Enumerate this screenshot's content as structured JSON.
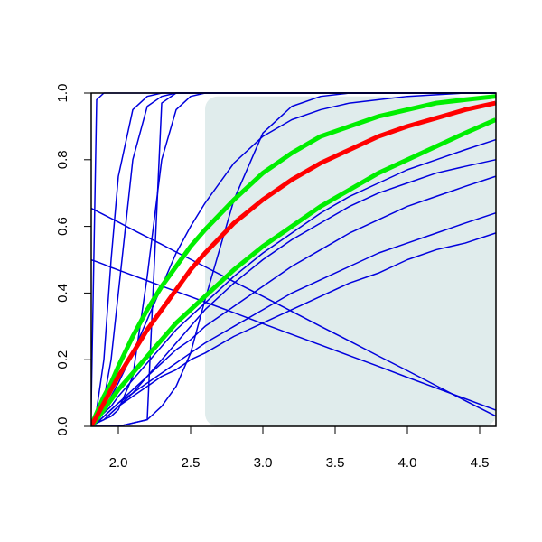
{
  "chart_data": {
    "type": "line",
    "x": [
      1.81,
      1.85,
      1.9,
      1.95,
      2.0,
      2.1,
      2.2,
      2.3,
      2.4,
      2.5,
      2.6,
      2.8,
      3.0,
      3.2,
      3.4,
      3.6,
      3.8,
      4.0,
      4.2,
      4.4,
      4.61
    ],
    "xlim": [
      1.8125,
      4.6125
    ],
    "ylim": [
      0,
      1
    ],
    "xticks": [
      {
        "value": 2,
        "label": "2.0"
      },
      2.5,
      {
        "value": 3,
        "label": "3.0"
      },
      3.5,
      {
        "value": 4,
        "label": "4.0"
      },
      4.5
    ],
    "yticks": [
      {
        "value": 0,
        "label": "0.0"
      },
      0.2,
      0.4,
      0.6,
      0.8,
      {
        "value": 1,
        "label": "1.0"
      }
    ],
    "shaded_region": {
      "x": [
        2.6,
        4.6125
      ],
      "y": [
        0,
        0.99
      ],
      "color": "#e0ecec"
    },
    "series": [
      {
        "color": "#0000dd",
        "width": 1.5,
        "values": [
          0,
          0.98,
          1,
          1,
          1,
          1,
          1,
          1,
          1,
          1,
          1,
          1,
          1,
          1,
          1,
          1,
          1,
          1,
          1,
          1,
          1
        ]
      },
      {
        "color": "#0000dd",
        "width": 1.5,
        "values": [
          0,
          0.05,
          0.2,
          0.5,
          0.75,
          0.95,
          0.99,
          1,
          1,
          1,
          1,
          1,
          1,
          1,
          1,
          1,
          1,
          1,
          1,
          1,
          1
        ]
      },
      {
        "color": "#0000dd",
        "width": 1.5,
        "values": [
          0,
          0.02,
          0.08,
          0.2,
          0.4,
          0.8,
          0.96,
          0.99,
          1,
          1,
          1,
          1,
          1,
          1,
          1,
          1,
          1,
          1,
          1,
          1,
          1
        ]
      },
      {
        "color": "#0000dd",
        "width": 1.5,
        "values": [
          0,
          0,
          0,
          0,
          0,
          0.01,
          0.02,
          0.97,
          1,
          1,
          1,
          1,
          1,
          1,
          1,
          1,
          1,
          1,
          1,
          1,
          1
        ]
      },
      {
        "color": "#0000dd",
        "width": 1.5,
        "values": [
          0,
          0.01,
          0.02,
          0.03,
          0.05,
          0.15,
          0.45,
          0.8,
          0.95,
          0.99,
          1,
          1,
          1,
          1,
          1,
          1,
          1,
          1,
          1,
          1,
          1
        ]
      },
      {
        "color": "#0000dd",
        "width": 1.5,
        "values": [
          0,
          0,
          0,
          0,
          0,
          0.01,
          0.02,
          0.06,
          0.12,
          0.22,
          0.38,
          0.68,
          0.88,
          0.96,
          0.99,
          1,
          1,
          1,
          1,
          1,
          1
        ]
      },
      {
        "color": "#0000dd",
        "width": 1.5,
        "values": [
          0,
          0.02,
          0.05,
          0.09,
          0.13,
          0.22,
          0.32,
          0.42,
          0.52,
          0.6,
          0.67,
          0.79,
          0.87,
          0.92,
          0.95,
          0.97,
          0.98,
          0.99,
          0.995,
          1,
          1
        ]
      },
      {
        "color": "#0000dd",
        "width": 1.5,
        "values": [
          0,
          0.02,
          0.04,
          0.06,
          0.09,
          0.14,
          0.19,
          0.24,
          0.29,
          0.33,
          0.37,
          0.45,
          0.52,
          0.58,
          0.64,
          0.69,
          0.73,
          0.77,
          0.8,
          0.83,
          0.86
        ]
      },
      {
        "color": "#0000dd",
        "width": 1.5,
        "values": [
          0,
          0.01,
          0.02,
          0.04,
          0.06,
          0.1,
          0.15,
          0.2,
          0.25,
          0.3,
          0.35,
          0.43,
          0.5,
          0.56,
          0.61,
          0.66,
          0.7,
          0.73,
          0.76,
          0.78,
          0.8
        ]
      },
      {
        "color": "#0000dd",
        "width": 1.5,
        "values": [
          0,
          0.01,
          0.03,
          0.05,
          0.07,
          0.11,
          0.15,
          0.19,
          0.23,
          0.26,
          0.3,
          0.36,
          0.42,
          0.48,
          0.53,
          0.58,
          0.62,
          0.66,
          0.69,
          0.72,
          0.75
        ]
      },
      {
        "color": "#0000dd",
        "width": 1.5,
        "values": [
          0,
          0.01,
          0.03,
          0.05,
          0.07,
          0.1,
          0.13,
          0.16,
          0.19,
          0.22,
          0.25,
          0.3,
          0.35,
          0.4,
          0.44,
          0.48,
          0.52,
          0.55,
          0.58,
          0.61,
          0.64
        ]
      },
      {
        "color": "#0000dd",
        "width": 1.5,
        "values": [
          0,
          0.01,
          0.02,
          0.04,
          0.06,
          0.09,
          0.12,
          0.15,
          0.17,
          0.2,
          0.22,
          0.27,
          0.31,
          0.35,
          0.39,
          0.43,
          0.46,
          0.5,
          0.53,
          0.55,
          0.58
        ]
      },
      {
        "color": "#0000dd",
        "width": 1.5,
        "values": [
          0.655,
          0.646,
          0.635,
          0.624,
          0.613,
          0.59,
          0.568,
          0.546,
          0.523,
          0.501,
          0.479,
          0.434,
          0.39,
          0.345,
          0.3,
          0.256,
          0.211,
          0.167,
          0.122,
          0.077,
          0.031
        ]
      },
      {
        "color": "#0000dd",
        "width": 1.5,
        "values": [
          0.5,
          0.494,
          0.486,
          0.477,
          0.469,
          0.453,
          0.437,
          0.421,
          0.405,
          0.389,
          0.373,
          0.341,
          0.308,
          0.276,
          0.244,
          0.212,
          0.18,
          0.147,
          0.115,
          0.083,
          0.049
        ]
      },
      {
        "color": "#00ee00",
        "width": 5,
        "values": [
          0,
          0.04,
          0.09,
          0.13,
          0.18,
          0.27,
          0.35,
          0.42,
          0.48,
          0.54,
          0.59,
          0.68,
          0.76,
          0.82,
          0.87,
          0.9,
          0.93,
          0.95,
          0.97,
          0.98,
          0.99
        ]
      },
      {
        "color": "#00ee00",
        "width": 5,
        "values": [
          0,
          0.02,
          0.05,
          0.08,
          0.11,
          0.16,
          0.21,
          0.26,
          0.31,
          0.35,
          0.39,
          0.47,
          0.54,
          0.6,
          0.66,
          0.71,
          0.76,
          0.8,
          0.84,
          0.88,
          0.92
        ]
      },
      {
        "color": "#ff0000",
        "width": 5,
        "values": [
          0,
          0.03,
          0.07,
          0.11,
          0.15,
          0.22,
          0.29,
          0.35,
          0.41,
          0.47,
          0.52,
          0.61,
          0.68,
          0.74,
          0.79,
          0.83,
          0.87,
          0.9,
          0.925,
          0.95,
          0.97
        ]
      }
    ]
  }
}
